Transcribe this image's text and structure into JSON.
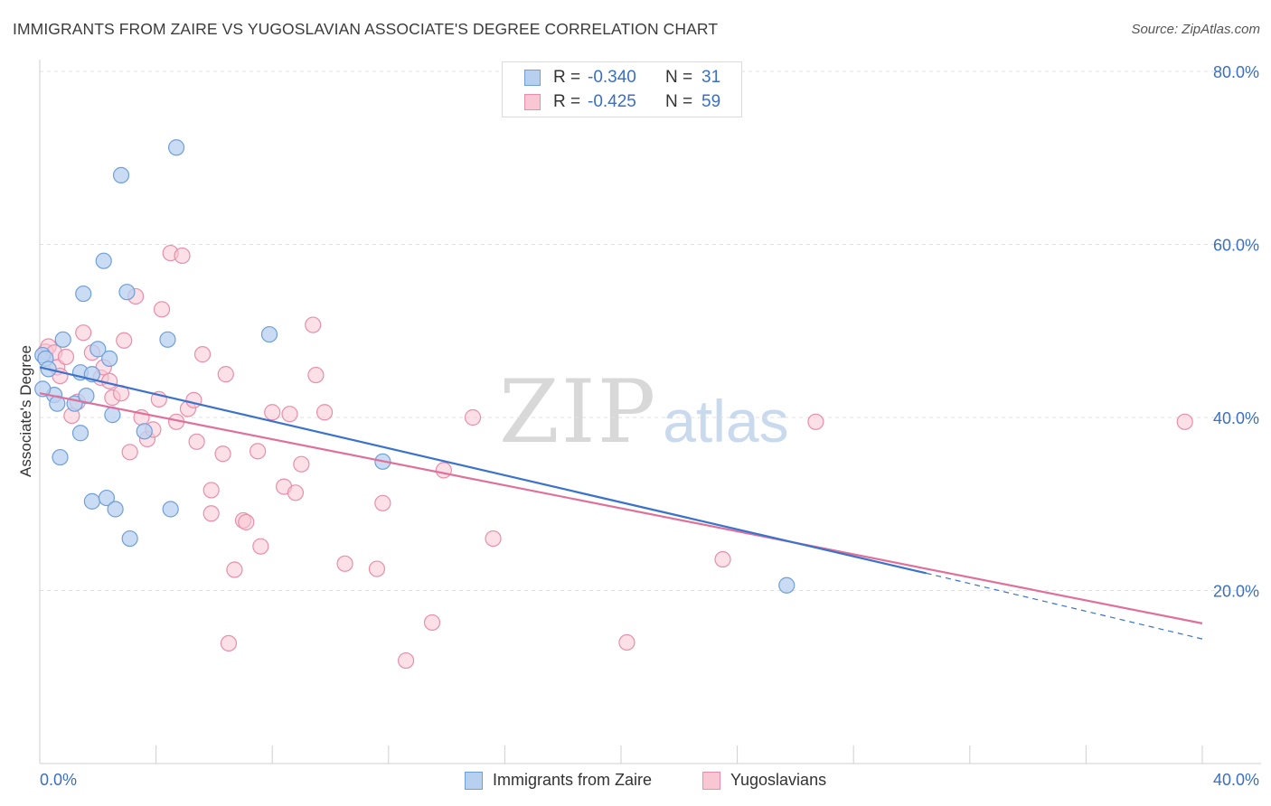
{
  "header": {
    "title": "IMMIGRANTS FROM ZAIRE VS YUGOSLAVIAN ASSOCIATE'S DEGREE CORRELATION CHART",
    "source": "Source: ZipAtlas.com"
  },
  "watermark": {
    "zip": "ZIP",
    "atlas": "atlas"
  },
  "legend": {
    "r_label": "R =",
    "n_label": "N =",
    "items": [
      {
        "r": "-0.340",
        "n": "31"
      },
      {
        "r": "-0.425",
        "n": "59"
      }
    ]
  },
  "colors": {
    "zaire_fill": "#b8d0f0",
    "zaire_stroke": "#6f9fd8",
    "zaire_line": "#3a72cc",
    "yugo_fill": "#f9c6d4",
    "yugo_stroke": "#e98eaa",
    "yugo_line": "#e0709a",
    "grid": "#e0e0e0",
    "tick_label": "#3a6fc4"
  },
  "chart_data": {
    "type": "scatter",
    "title": "IMMIGRANTS FROM ZAIRE VS YUGOSLAVIAN ASSOCIATE'S DEGREE CORRELATION CHART",
    "xlabel": "",
    "ylabel": "Associate's Degree",
    "xlim": [
      0,
      40
    ],
    "ylim": [
      0,
      80
    ],
    "x_tick_labels": [
      "0.0%",
      "40.0%"
    ],
    "y_ticks": [
      20,
      40,
      60,
      80
    ],
    "y_tick_labels": [
      "20.0%",
      "40.0%",
      "60.0%",
      "80.0%"
    ],
    "grid": true,
    "series": [
      {
        "name": "Immigrants from Zaire",
        "r": -0.34,
        "n": 31,
        "trend": {
          "x0": 0,
          "y0": 45.8,
          "x1": 30.5,
          "y1": 22.0,
          "dashed_to_x": 40,
          "dashed_to_y": 14.4
        },
        "points": [
          [
            0.1,
            47.2
          ],
          [
            0.2,
            46.8
          ],
          [
            0.3,
            45.6
          ],
          [
            0.5,
            42.6
          ],
          [
            0.6,
            41.6
          ],
          [
            0.8,
            49.0
          ],
          [
            0.7,
            35.4
          ],
          [
            1.2,
            41.6
          ],
          [
            1.4,
            45.2
          ],
          [
            1.4,
            38.2
          ],
          [
            1.5,
            54.3
          ],
          [
            1.6,
            42.5
          ],
          [
            1.8,
            30.3
          ],
          [
            1.8,
            45.0
          ],
          [
            2.0,
            47.9
          ],
          [
            2.2,
            58.1
          ],
          [
            2.3,
            30.7
          ],
          [
            2.4,
            46.8
          ],
          [
            2.5,
            40.3
          ],
          [
            2.6,
            29.4
          ],
          [
            2.8,
            68.0
          ],
          [
            3.0,
            54.5
          ],
          [
            3.1,
            26.0
          ],
          [
            3.6,
            38.4
          ],
          [
            4.4,
            49.0
          ],
          [
            4.5,
            29.4
          ],
          [
            4.7,
            71.2
          ],
          [
            7.9,
            49.6
          ],
          [
            11.8,
            34.9
          ],
          [
            25.7,
            20.6
          ],
          [
            0.1,
            43.3
          ]
        ]
      },
      {
        "name": "Yugoslavians",
        "r": -0.425,
        "n": 59,
        "trend": {
          "x0": 0,
          "y0": 42.8,
          "x1": 40,
          "y1": 16.2
        },
        "points": [
          [
            0.2,
            47.6
          ],
          [
            0.3,
            48.2
          ],
          [
            0.5,
            47.5
          ],
          [
            0.6,
            45.8
          ],
          [
            0.7,
            44.8
          ],
          [
            0.9,
            47.0
          ],
          [
            1.1,
            40.2
          ],
          [
            1.3,
            41.8
          ],
          [
            1.5,
            49.8
          ],
          [
            1.8,
            47.5
          ],
          [
            2.1,
            44.6
          ],
          [
            2.2,
            45.8
          ],
          [
            2.4,
            44.2
          ],
          [
            2.5,
            42.3
          ],
          [
            2.8,
            42.8
          ],
          [
            2.9,
            48.9
          ],
          [
            3.1,
            36.0
          ],
          [
            3.3,
            54.0
          ],
          [
            3.5,
            40.0
          ],
          [
            3.7,
            37.5
          ],
          [
            3.9,
            38.6
          ],
          [
            4.1,
            42.1
          ],
          [
            4.2,
            52.5
          ],
          [
            4.5,
            59.0
          ],
          [
            4.7,
            39.5
          ],
          [
            4.9,
            58.7
          ],
          [
            5.1,
            41.0
          ],
          [
            5.3,
            42.0
          ],
          [
            5.4,
            37.2
          ],
          [
            5.6,
            47.3
          ],
          [
            5.9,
            31.6
          ],
          [
            5.9,
            28.9
          ],
          [
            6.3,
            35.8
          ],
          [
            6.4,
            45.0
          ],
          [
            6.5,
            13.9
          ],
          [
            6.7,
            22.4
          ],
          [
            7.0,
            28.1
          ],
          [
            7.1,
            27.9
          ],
          [
            7.5,
            36.1
          ],
          [
            7.6,
            25.1
          ],
          [
            8.0,
            40.6
          ],
          [
            8.4,
            32.0
          ],
          [
            8.6,
            40.4
          ],
          [
            8.8,
            31.3
          ],
          [
            9.0,
            34.6
          ],
          [
            9.4,
            50.7
          ],
          [
            9.5,
            44.9
          ],
          [
            9.8,
            40.6
          ],
          [
            10.5,
            23.1
          ],
          [
            11.6,
            22.5
          ],
          [
            11.8,
            30.1
          ],
          [
            12.6,
            11.9
          ],
          [
            13.5,
            16.3
          ],
          [
            13.9,
            33.9
          ],
          [
            14.9,
            40.0
          ],
          [
            15.6,
            26.0
          ],
          [
            20.2,
            14.0
          ],
          [
            23.5,
            23.6
          ],
          [
            26.7,
            39.5
          ],
          [
            39.4,
            39.5
          ]
        ]
      }
    ]
  },
  "bottom_legend": [
    {
      "label": "Immigrants from Zaire"
    },
    {
      "label": "Yugoslavians"
    }
  ]
}
